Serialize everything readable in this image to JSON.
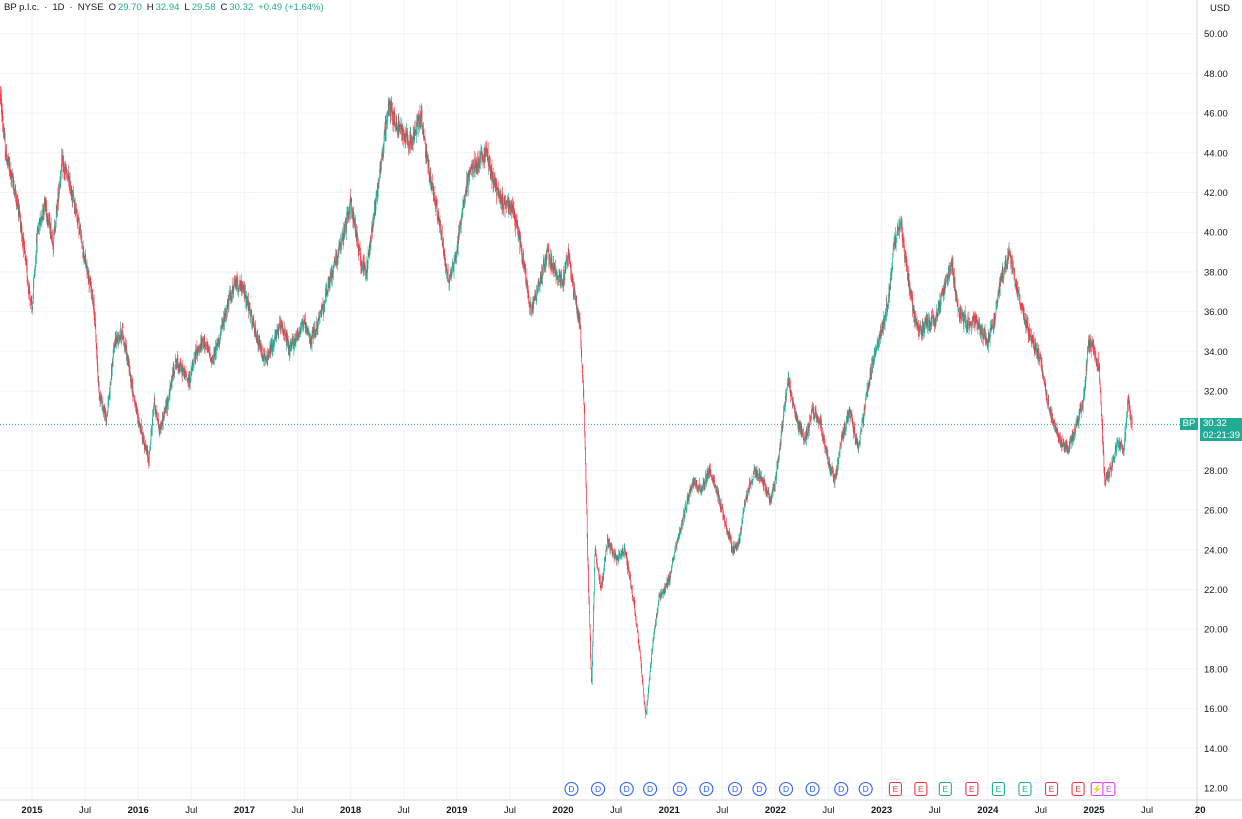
{
  "legend": {
    "symbol_name": "BP p.l.c.",
    "interval": "1D",
    "exchange": "NYSE",
    "open_label": "O",
    "open": "29.70",
    "high_label": "H",
    "high": "32.94",
    "low_label": "L",
    "low": "29.58",
    "close_label": "C",
    "close": "30.32",
    "change": "+0.49 (+1.64%)"
  },
  "price_axis": {
    "currency": "USD"
  },
  "last_price": {
    "symbol": "BP",
    "value": "30.32",
    "countdown": "02:21:39"
  },
  "colors": {
    "up": "#22ab94",
    "down": "#f23645",
    "dividend": "#2962ff",
    "earnings_neg": "#f23645",
    "earnings_pos": "#22ab94",
    "split": "#e040fb"
  },
  "chart_data": {
    "type": "candlestick",
    "title": "BP p.l.c. · 1D · NYSE",
    "ylabel": "USD",
    "ylim": [
      11,
      51
    ],
    "yticks": [
      "12.00",
      "14.00",
      "16.00",
      "18.00",
      "20.00",
      "22.00",
      "24.00",
      "26.00",
      "28.00",
      "30.00",
      "32.00",
      "34.00",
      "36.00",
      "38.00",
      "40.00",
      "42.00",
      "44.00",
      "46.00",
      "48.00",
      "50.00"
    ],
    "xticks": [
      {
        "label": "2015",
        "t": 2015.0,
        "year": true
      },
      {
        "label": "Jul",
        "t": 2015.5
      },
      {
        "label": "2016",
        "t": 2016.0,
        "year": true
      },
      {
        "label": "Jul",
        "t": 2016.5
      },
      {
        "label": "2017",
        "t": 2017.0,
        "year": true
      },
      {
        "label": "Jul",
        "t": 2017.5
      },
      {
        "label": "2018",
        "t": 2018.0,
        "year": true
      },
      {
        "label": "Jul",
        "t": 2018.5
      },
      {
        "label": "2019",
        "t": 2019.0,
        "year": true
      },
      {
        "label": "Jul",
        "t": 2019.5
      },
      {
        "label": "2020",
        "t": 2020.0,
        "year": true
      },
      {
        "label": "Jul",
        "t": 2020.5
      },
      {
        "label": "2021",
        "t": 2021.0,
        "year": true
      },
      {
        "label": "Jul",
        "t": 2021.5
      },
      {
        "label": "2022",
        "t": 2022.0,
        "year": true
      },
      {
        "label": "Jul",
        "t": 2022.5
      },
      {
        "label": "2023",
        "t": 2023.0,
        "year": true
      },
      {
        "label": "Jul",
        "t": 2023.5
      },
      {
        "label": "2024",
        "t": 2024.0,
        "year": true
      },
      {
        "label": "Jul",
        "t": 2024.5
      },
      {
        "label": "2025",
        "t": 2025.0,
        "year": true
      },
      {
        "label": "Jul",
        "t": 2025.5
      },
      {
        "label": "20",
        "t": 2026.0,
        "year": true
      }
    ],
    "series": [
      {
        "name": "BP",
        "path": [
          [
            2014.7,
            47.0
          ],
          [
            2014.75,
            44.0
          ],
          [
            2014.82,
            42.5
          ],
          [
            2014.88,
            41.0
          ],
          [
            2014.95,
            38.0
          ],
          [
            2015.0,
            36.0
          ],
          [
            2015.05,
            40.0
          ],
          [
            2015.12,
            41.5
          ],
          [
            2015.2,
            39.5
          ],
          [
            2015.28,
            43.5
          ],
          [
            2015.35,
            42.5
          ],
          [
            2015.42,
            41.0
          ],
          [
            2015.5,
            38.5
          ],
          [
            2015.58,
            36.5
          ],
          [
            2015.63,
            32.0
          ],
          [
            2015.7,
            30.5
          ],
          [
            2015.78,
            34.5
          ],
          [
            2015.85,
            35.0
          ],
          [
            2015.92,
            33.0
          ],
          [
            2015.98,
            31.0
          ],
          [
            2016.05,
            29.5
          ],
          [
            2016.1,
            28.5
          ],
          [
            2016.15,
            31.5
          ],
          [
            2016.2,
            30.0
          ],
          [
            2016.28,
            31.5
          ],
          [
            2016.35,
            33.5
          ],
          [
            2016.42,
            33.0
          ],
          [
            2016.48,
            32.5
          ],
          [
            2016.55,
            34.0
          ],
          [
            2016.62,
            34.5
          ],
          [
            2016.7,
            33.5
          ],
          [
            2016.78,
            35.0
          ],
          [
            2016.85,
            36.5
          ],
          [
            2016.92,
            37.5
          ],
          [
            2017.0,
            37.0
          ],
          [
            2017.05,
            36.0
          ],
          [
            2017.12,
            34.5
          ],
          [
            2017.2,
            33.5
          ],
          [
            2017.28,
            34.5
          ],
          [
            2017.35,
            35.5
          ],
          [
            2017.42,
            34.0
          ],
          [
            2017.5,
            34.8
          ],
          [
            2017.55,
            35.5
          ],
          [
            2017.62,
            34.5
          ],
          [
            2017.7,
            35.5
          ],
          [
            2017.78,
            37.0
          ],
          [
            2017.85,
            38.5
          ],
          [
            2017.92,
            39.5
          ],
          [
            2018.0,
            41.5
          ],
          [
            2018.05,
            40.0
          ],
          [
            2018.1,
            38.5
          ],
          [
            2018.15,
            38.0
          ],
          [
            2018.22,
            41.0
          ],
          [
            2018.3,
            44.0
          ],
          [
            2018.36,
            46.5
          ],
          [
            2018.42,
            45.5
          ],
          [
            2018.5,
            45.0
          ],
          [
            2018.58,
            44.5
          ],
          [
            2018.66,
            46.0
          ],
          [
            2018.72,
            43.5
          ],
          [
            2018.78,
            42.0
          ],
          [
            2018.85,
            40.0
          ],
          [
            2018.92,
            37.5
          ],
          [
            2019.0,
            39.0
          ],
          [
            2019.06,
            41.5
          ],
          [
            2019.12,
            43.0
          ],
          [
            2019.2,
            43.5
          ],
          [
            2019.28,
            44.0
          ],
          [
            2019.35,
            42.5
          ],
          [
            2019.42,
            41.5
          ],
          [
            2019.5,
            41.5
          ],
          [
            2019.58,
            40.0
          ],
          [
            2019.64,
            38.0
          ],
          [
            2019.7,
            36.0
          ],
          [
            2019.78,
            37.5
          ],
          [
            2019.85,
            39.0
          ],
          [
            2019.92,
            38.0
          ],
          [
            2020.0,
            37.5
          ],
          [
            2020.05,
            39.0
          ],
          [
            2020.1,
            37.0
          ],
          [
            2020.16,
            35.5
          ],
          [
            2020.2,
            31.0
          ],
          [
            2020.24,
            22.0
          ],
          [
            2020.27,
            17.0
          ],
          [
            2020.3,
            24.0
          ],
          [
            2020.36,
            22.0
          ],
          [
            2020.42,
            24.5
          ],
          [
            2020.5,
            23.5
          ],
          [
            2020.58,
            24.0
          ],
          [
            2020.65,
            22.0
          ],
          [
            2020.72,
            19.0
          ],
          [
            2020.78,
            15.5
          ],
          [
            2020.84,
            19.0
          ],
          [
            2020.9,
            21.5
          ],
          [
            2021.0,
            22.5
          ],
          [
            2021.08,
            24.5
          ],
          [
            2021.15,
            26.0
          ],
          [
            2021.22,
            27.5
          ],
          [
            2021.3,
            27.0
          ],
          [
            2021.38,
            28.0
          ],
          [
            2021.45,
            27.0
          ],
          [
            2021.52,
            25.5
          ],
          [
            2021.6,
            24.0
          ],
          [
            2021.66,
            24.5
          ],
          [
            2021.72,
            26.5
          ],
          [
            2021.8,
            28.0
          ],
          [
            2021.88,
            27.5
          ],
          [
            2021.95,
            26.5
          ],
          [
            2022.0,
            27.5
          ],
          [
            2022.06,
            30.0
          ],
          [
            2022.12,
            32.5
          ],
          [
            2022.2,
            30.5
          ],
          [
            2022.28,
            29.5
          ],
          [
            2022.35,
            31.0
          ],
          [
            2022.42,
            30.5
          ],
          [
            2022.5,
            28.5
          ],
          [
            2022.56,
            27.5
          ],
          [
            2022.62,
            29.5
          ],
          [
            2022.7,
            31.0
          ],
          [
            2022.78,
            29.0
          ],
          [
            2022.85,
            31.5
          ],
          [
            2022.92,
            33.5
          ],
          [
            2023.0,
            35.0
          ],
          [
            2023.06,
            36.5
          ],
          [
            2023.12,
            39.5
          ],
          [
            2023.18,
            40.5
          ],
          [
            2023.24,
            38.0
          ],
          [
            2023.3,
            36.0
          ],
          [
            2023.36,
            35.0
          ],
          [
            2023.42,
            35.5
          ],
          [
            2023.5,
            35.5
          ],
          [
            2023.58,
            37.0
          ],
          [
            2023.66,
            38.5
          ],
          [
            2023.72,
            36.0
          ],
          [
            2023.8,
            35.5
          ],
          [
            2023.88,
            35.5
          ],
          [
            2023.94,
            35.0
          ],
          [
            2024.0,
            34.5
          ],
          [
            2024.06,
            35.5
          ],
          [
            2024.12,
            37.5
          ],
          [
            2024.2,
            39.0
          ],
          [
            2024.28,
            37.0
          ],
          [
            2024.35,
            35.5
          ],
          [
            2024.42,
            34.5
          ],
          [
            2024.5,
            33.5
          ],
          [
            2024.56,
            31.5
          ],
          [
            2024.62,
            30.5
          ],
          [
            2024.68,
            29.5
          ],
          [
            2024.75,
            29.0
          ],
          [
            2024.82,
            30.0
          ],
          [
            2024.9,
            31.5
          ],
          [
            2024.95,
            34.5
          ],
          [
            2025.0,
            34.0
          ],
          [
            2025.05,
            33.0
          ],
          [
            2025.1,
            27.5
          ],
          [
            2025.16,
            28.0
          ],
          [
            2025.22,
            29.5
          ],
          [
            2025.28,
            29.0
          ],
          [
            2025.32,
            31.5
          ],
          [
            2025.36,
            30.3
          ]
        ]
      }
    ],
    "events": [
      {
        "type": "D",
        "t": 2020.08
      },
      {
        "type": "D",
        "t": 2020.33
      },
      {
        "type": "D",
        "t": 2020.6
      },
      {
        "type": "D",
        "t": 2020.82
      },
      {
        "type": "D",
        "t": 2021.1
      },
      {
        "type": "D",
        "t": 2021.35
      },
      {
        "type": "D",
        "t": 2021.62
      },
      {
        "type": "D",
        "t": 2021.85
      },
      {
        "type": "D",
        "t": 2022.1
      },
      {
        "type": "D",
        "t": 2022.35
      },
      {
        "type": "D",
        "t": 2022.62
      },
      {
        "type": "D",
        "t": 2022.85
      },
      {
        "type": "E",
        "t": 2023.13,
        "result": "neg"
      },
      {
        "type": "E",
        "t": 2023.37,
        "result": "neg"
      },
      {
        "type": "E",
        "t": 2023.6,
        "result": "pos"
      },
      {
        "type": "E",
        "t": 2023.85,
        "result": "neg"
      },
      {
        "type": "E",
        "t": 2024.1,
        "result": "pos"
      },
      {
        "type": "E",
        "t": 2024.35,
        "result": "pos"
      },
      {
        "type": "E",
        "t": 2024.6,
        "result": "neg"
      },
      {
        "type": "E",
        "t": 2024.85,
        "result": "neg"
      },
      {
        "type": "S",
        "t": 2025.03
      },
      {
        "type": "E",
        "t": 2025.14,
        "result": "split"
      }
    ]
  }
}
